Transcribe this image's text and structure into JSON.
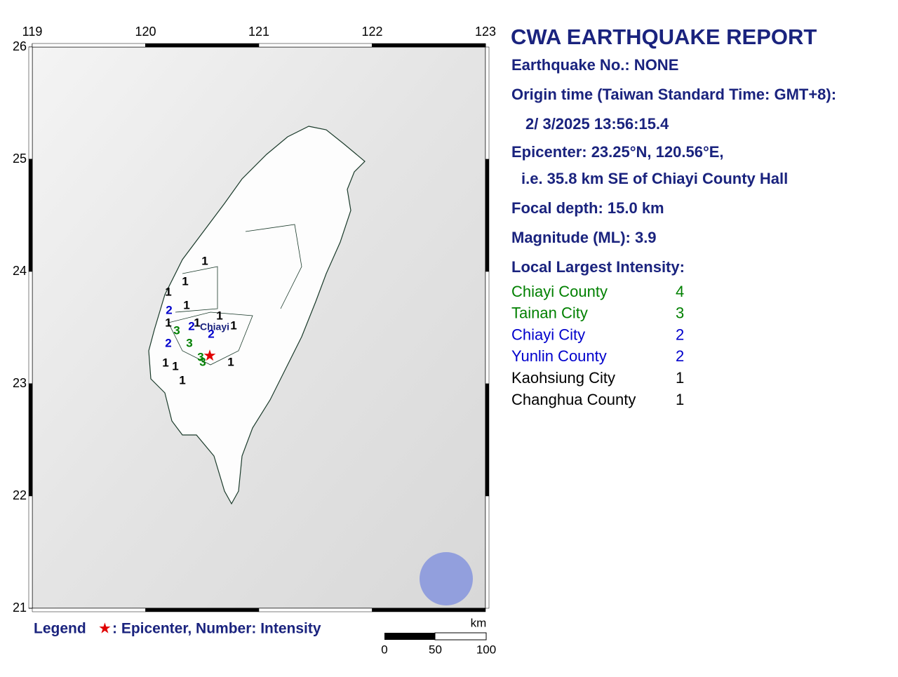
{
  "report": {
    "title": "CWA EARTHQUAKE REPORT",
    "lines": [
      "Earthquake No.: NONE",
      "Origin time (Taiwan Standard Time: GMT+8):",
      "2/ 3/2025 13:56:15.4",
      "Epicenter: 23.25°N, 120.56°E,",
      "i.e. 35.8 km SE of Chiayi County Hall",
      "Focal depth: 15.0 km",
      "Magnitude (ML): 3.9",
      "Local Largest Intensity:"
    ],
    "intensities": [
      {
        "area": "Chiayi County",
        "value": 4
      },
      {
        "area": "Tainan City",
        "value": 3
      },
      {
        "area": "Chiayi City",
        "value": 2
      },
      {
        "area": "Yunlin County",
        "value": 2
      },
      {
        "area": "Kaohsiung City",
        "value": 1
      },
      {
        "area": "Changhua County",
        "value": 1
      }
    ]
  },
  "map": {
    "lon_ticks": [
      119,
      120,
      121,
      122,
      123
    ],
    "lat_ticks": [
      26,
      25,
      24,
      23,
      22,
      21
    ],
    "city_label": "Chiayi",
    "station_intensities": [
      1,
      1,
      1,
      2,
      1,
      1,
      3,
      2,
      1,
      1,
      1,
      2,
      3,
      2,
      3,
      3,
      1,
      1,
      1,
      1
    ],
    "legend": {
      "title": "Legend",
      "symbol": "★",
      "text": ": Epicenter, Number: Intensity"
    },
    "scale": {
      "unit": "km",
      "ticks": [
        0,
        50,
        100
      ]
    }
  }
}
